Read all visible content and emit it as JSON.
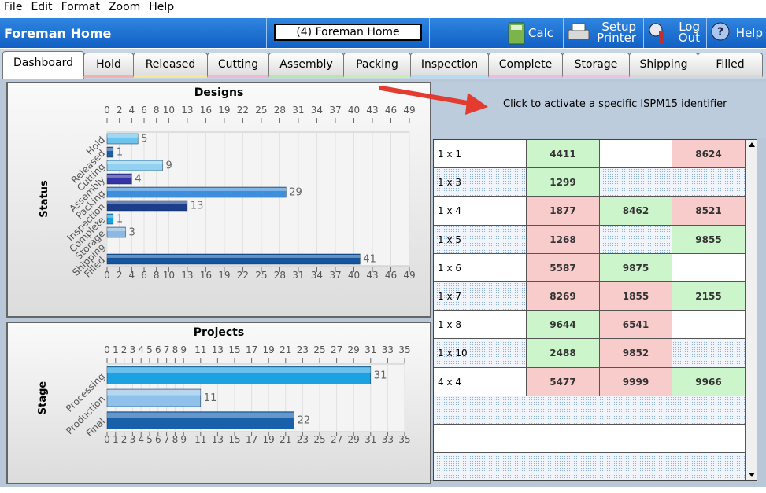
{
  "menu": [
    "File",
    "Edit",
    "Format",
    "Zoom",
    "Help"
  ],
  "header": {
    "title": "Foreman Home",
    "selector": "(4) Foreman Home",
    "buttons": [
      "Calc",
      "Setup Printer",
      "Log Out",
      "Help"
    ]
  },
  "tabs": [
    {
      "label": "Dashboard",
      "color": "#d8d8d8"
    },
    {
      "label": "Hold",
      "color": "#f4b0b0"
    },
    {
      "label": "Released",
      "color": "#f2e79a"
    },
    {
      "label": "Cutting",
      "color": "#f5b6d2"
    },
    {
      "label": "Assembly",
      "color": "#b8e8a8"
    },
    {
      "label": "Packing",
      "color": "#c8f0b0"
    },
    {
      "label": "Inspection",
      "color": "#b0dcf4"
    },
    {
      "label": "Complete",
      "color": "#f0b8e4"
    },
    {
      "label": "Storage",
      "color": "#f4c0e0"
    },
    {
      "label": "Shipping",
      "color": "#d8d8d8"
    },
    {
      "label": "Filled",
      "color": "#d8d8d8"
    }
  ],
  "chart_data": [
    {
      "type": "bar",
      "orientation": "horizontal",
      "title": "Designs",
      "y_label": "Status",
      "categories": [
        "Hold",
        "Released",
        "Cutting",
        "Assembly",
        "Packing",
        "Inspection",
        "Complete",
        "Storage",
        "Shipping",
        "Filled"
      ],
      "values": [
        5,
        1,
        9,
        4,
        29,
        13,
        1,
        3,
        null,
        41
      ],
      "colors": [
        "#6cc4ee",
        "#1b5ea6",
        "#92d2f0",
        "#3434a4",
        "#3d8edb",
        "#1c3d8a",
        "#1aa0da",
        "#8db8e2",
        "#1b5ea6",
        "#14569e"
      ],
      "xlim": [
        0,
        49
      ],
      "xticks": [
        0,
        2,
        4,
        6,
        8,
        10,
        13,
        16,
        19,
        22,
        25,
        28,
        31,
        34,
        37,
        40,
        43,
        46,
        49
      ],
      "grid": true
    },
    {
      "type": "bar",
      "orientation": "horizontal",
      "title": "Projects",
      "y_label": "Stage",
      "categories": [
        "Processing",
        "Production",
        "Final"
      ],
      "values": [
        31,
        11,
        22
      ],
      "colors": [
        "#1ba2e2",
        "#8ec2ea",
        "#1860aa"
      ],
      "xlim": [
        0,
        35
      ],
      "xticks": [
        0,
        1,
        2,
        3,
        4,
        5,
        6,
        7,
        8,
        9,
        11,
        13,
        15,
        17,
        19,
        21,
        23,
        25,
        27,
        29,
        31,
        33,
        35
      ],
      "grid": true
    }
  ],
  "annotation": "Click to activate a specific ISPM15 identifier",
  "table": {
    "colors": {
      "green": "#ccf5cc",
      "red": "#f9cccc"
    },
    "rows": [
      {
        "label": "1 x 1",
        "cells": [
          {
            "value": 4411,
            "status": "green"
          },
          null,
          {
            "value": 8624,
            "status": "red"
          }
        ]
      },
      {
        "label": "1 x 3",
        "cells": [
          {
            "value": 1299,
            "status": "green"
          },
          null,
          null
        ]
      },
      {
        "label": "1 x 4",
        "cells": [
          {
            "value": 1877,
            "status": "red"
          },
          {
            "value": 8462,
            "status": "green"
          },
          {
            "value": 8521,
            "status": "red"
          }
        ]
      },
      {
        "label": "1 x 5",
        "cells": [
          {
            "value": 1268,
            "status": "red"
          },
          null,
          {
            "value": 9855,
            "status": "green"
          }
        ]
      },
      {
        "label": "1 x 6",
        "cells": [
          {
            "value": 5587,
            "status": "red"
          },
          {
            "value": 9875,
            "status": "green"
          },
          null
        ]
      },
      {
        "label": "1 x 7",
        "cells": [
          {
            "value": 8269,
            "status": "red"
          },
          {
            "value": 1855,
            "status": "red"
          },
          {
            "value": 2155,
            "status": "green"
          }
        ]
      },
      {
        "label": "1 x 8",
        "cells": [
          {
            "value": 9644,
            "status": "green"
          },
          {
            "value": 6541,
            "status": "red"
          },
          null
        ]
      },
      {
        "label": "1 x 10",
        "cells": [
          {
            "value": 2488,
            "status": "green"
          },
          {
            "value": 9852,
            "status": "red"
          },
          null
        ]
      },
      {
        "label": "4 x 4",
        "cells": [
          {
            "value": 5477,
            "status": "red"
          },
          {
            "value": 9999,
            "status": "red"
          },
          {
            "value": 9966,
            "status": "green"
          }
        ]
      }
    ]
  }
}
